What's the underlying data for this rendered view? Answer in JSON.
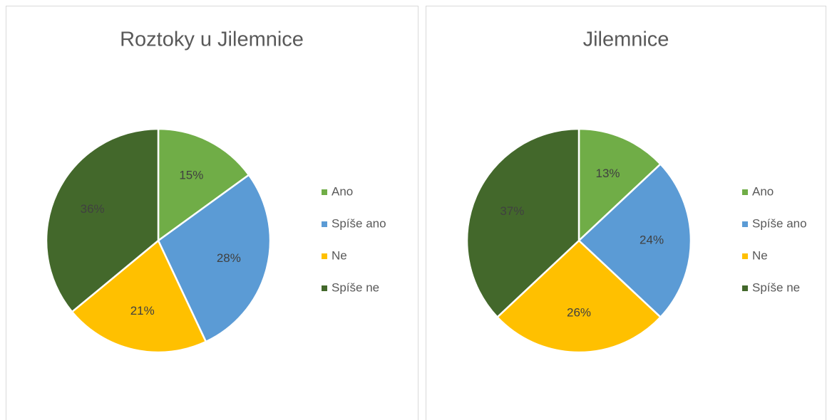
{
  "chart_data": [
    {
      "type": "pie",
      "title": "Roztoky u Jilemnice",
      "categories": [
        "Ano",
        "Spíše ano",
        "Ne",
        "Spíše ne"
      ],
      "values": [
        15,
        28,
        21,
        36
      ],
      "value_labels": [
        "15%",
        "28%",
        "21%",
        "36%"
      ],
      "colors": [
        "#70ad47",
        "#5b9bd5",
        "#ffc000",
        "#43682b"
      ],
      "legend": "right"
    },
    {
      "type": "pie",
      "title": "Jilemnice",
      "categories": [
        "Ano",
        "Spíše ano",
        "Ne",
        "Spíše ne"
      ],
      "values": [
        13,
        24,
        26,
        37
      ],
      "value_labels": [
        "13%",
        "24%",
        "26%",
        "37%"
      ],
      "colors": [
        "#70ad47",
        "#5b9bd5",
        "#ffc000",
        "#43682b"
      ],
      "legend": "right"
    }
  ]
}
